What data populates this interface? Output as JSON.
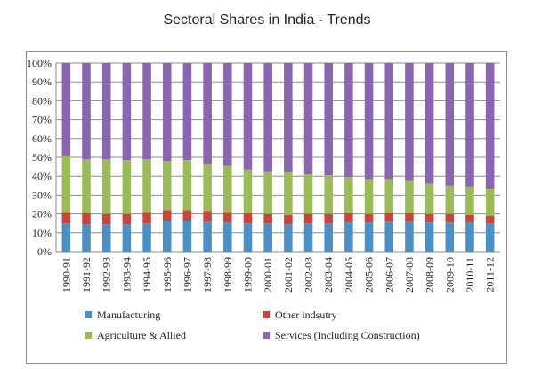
{
  "chart_data": {
    "type": "bar",
    "stacked": "percent",
    "title": "Sectoral Shares in India - Trends",
    "xlabel": "",
    "ylabel": "",
    "ylim": [
      0,
      100
    ],
    "yticks": [
      "0%",
      "10%",
      "20%",
      "30%",
      "40%",
      "50%",
      "60%",
      "70%",
      "80%",
      "90%",
      "100%"
    ],
    "grid": "horizontal",
    "legend_placement": "bottom",
    "categories": [
      "1990-91",
      "1991-92",
      "1992-93",
      "1993-94",
      "1994-95",
      "1995-96",
      "1996-97",
      "1997-98",
      "1998-99",
      "1999-00",
      "2000-01",
      "2001-02",
      "2002-03",
      "2003-04",
      "2004-05",
      "2005-06",
      "2006-07",
      "2007-08",
      "2008-09",
      "2009-10",
      "2010-11",
      "2011-12"
    ],
    "series": [
      {
        "name": "Manufacturing",
        "color": "#4a90c6",
        "values": [
          15,
          14.5,
          14.5,
          14.5,
          15,
          16.5,
          16.5,
          16,
          15.5,
          15,
          15,
          14.5,
          15,
          15,
          15.5,
          15.5,
          16,
          16,
          15.5,
          15.5,
          15.5,
          15
        ]
      },
      {
        "name": "Other indsutry",
        "color": "#c9453c",
        "values": [
          6,
          6,
          5.5,
          5.5,
          6,
          5.5,
          5.5,
          5.5,
          5.5,
          5.5,
          5,
          5,
          5,
          5,
          5,
          4.5,
          4.5,
          4.5,
          4.5,
          4.5,
          4,
          4
        ]
      },
      {
        "name": "Agriculture & Allied",
        "color": "#9bbb59",
        "values": [
          29.5,
          28.5,
          29,
          28.5,
          28,
          26,
          26.5,
          25,
          24.5,
          23,
          22.5,
          22.5,
          21,
          20.5,
          19,
          18.5,
          18,
          17,
          16,
          15,
          15,
          14.5
        ]
      },
      {
        "name": "Services (Including Construction)",
        "color": "#8a65b1",
        "values": [
          49.5,
          51,
          51,
          51.5,
          51,
          52,
          51.5,
          53.5,
          54.5,
          56.5,
          57.5,
          58,
          59,
          59.5,
          60.5,
          61.5,
          61.5,
          62.5,
          64,
          65,
          65.5,
          66.5
        ]
      }
    ]
  }
}
